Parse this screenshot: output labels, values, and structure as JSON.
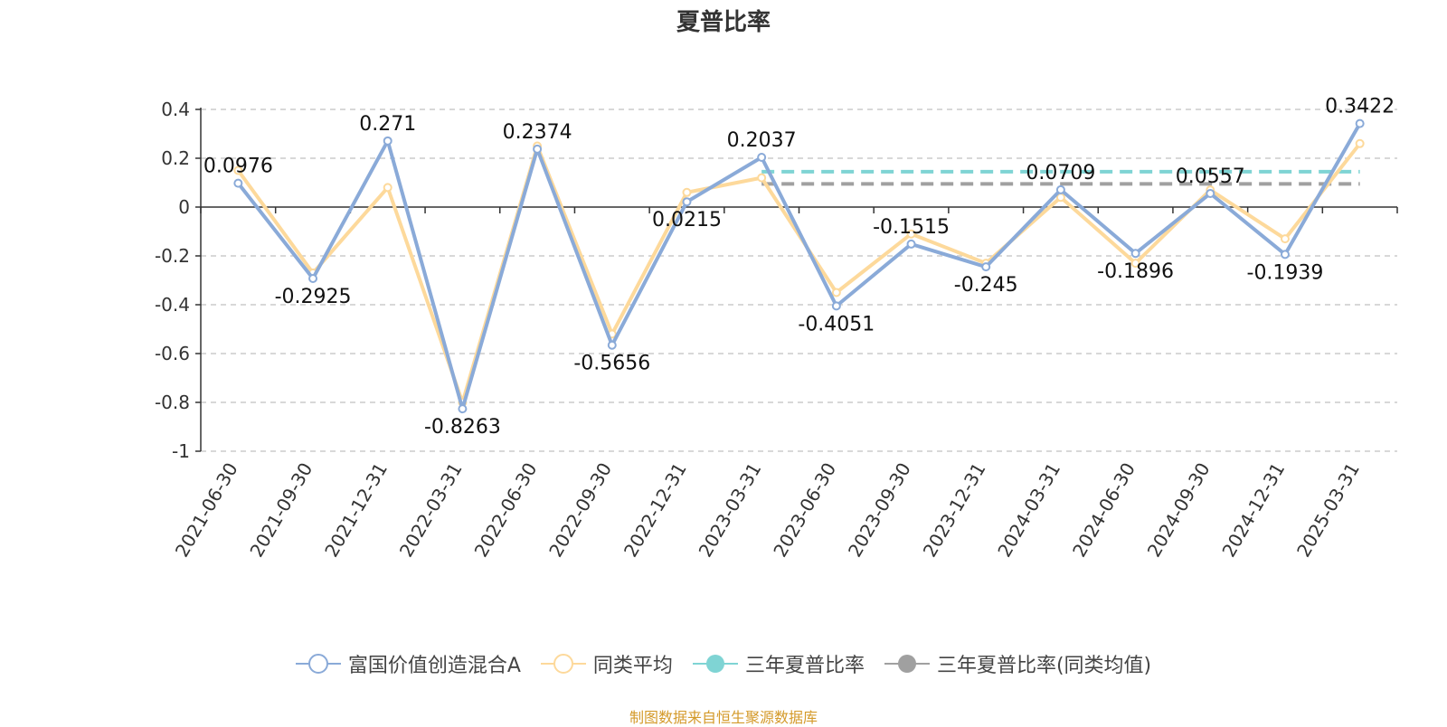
{
  "title": "夏普比率",
  "source_note": "制图数据来自恒生聚源数据库",
  "legend": [
    {
      "name": "富国价值创造混合A",
      "color": "#8aaad8",
      "marker": "hollow-circle"
    },
    {
      "name": "同类平均",
      "color": "#fdd99b",
      "marker": "hollow-circle"
    },
    {
      "name": "三年夏普比率",
      "color": "#7fd4d4",
      "marker": "filled-circle"
    },
    {
      "name": "三年夏普比率(同类均值)",
      "color": "#a0a0a0",
      "marker": "filled-circle"
    }
  ],
  "chart_data": {
    "type": "line",
    "title": "夏普比率",
    "categories": [
      "2021-06-30",
      "2021-09-30",
      "2021-12-31",
      "2022-03-31",
      "2022-06-30",
      "2022-09-30",
      "2022-12-31",
      "2023-03-31",
      "2023-06-30",
      "2023-09-30",
      "2023-12-31",
      "2024-03-31",
      "2024-06-30",
      "2024-09-30",
      "2024-12-31",
      "2025-03-31"
    ],
    "ylim": [
      -1,
      0.4
    ],
    "yticks": [
      0.4,
      0.2,
      0,
      -0.2,
      -0.4,
      -0.6,
      -0.8,
      -1
    ],
    "ytick_labels": [
      "0.4",
      "0.2",
      "0",
      "-0.2",
      "-0.4",
      "-0.6",
      "-0.8",
      "-1"
    ],
    "grid": true,
    "legend_position": "bottom",
    "series": [
      {
        "name": "富国价值创造混合A",
        "color": "#8aaad8",
        "values": [
          0.0976,
          -0.2925,
          0.271,
          -0.8263,
          0.2374,
          -0.5656,
          0.0215,
          0.2037,
          -0.4051,
          -0.1515,
          -0.245,
          0.0709,
          -0.1896,
          0.0557,
          -0.1939,
          0.3422
        ],
        "labels": [
          "0.0976",
          "-0.2925",
          "0.271",
          "-0.8263",
          "0.2374",
          "-0.5656",
          "0.0215",
          "0.2037",
          "-0.4051",
          "-0.1515",
          "-0.245",
          "0.0709",
          "-0.1896",
          "0.0557",
          "-0.1939",
          "0.3422"
        ]
      },
      {
        "name": "同类平均",
        "color": "#fdd99b",
        "values": [
          0.15,
          -0.27,
          0.08,
          -0.8,
          0.25,
          -0.52,
          0.06,
          0.12,
          -0.35,
          -0.11,
          -0.23,
          0.04,
          -0.23,
          0.07,
          -0.13,
          0.26
        ]
      },
      {
        "name": "三年夏普比率",
        "color": "#7fd4d4",
        "type": "hline",
        "start_category": "2023-03-31",
        "end_category": "2025-03-31",
        "value": 0.145
      },
      {
        "name": "三年夏普比率(同类均值)",
        "color": "#a0a0a0",
        "type": "hline",
        "start_category": "2023-03-31",
        "end_category": "2025-03-31",
        "value": 0.095
      }
    ]
  }
}
